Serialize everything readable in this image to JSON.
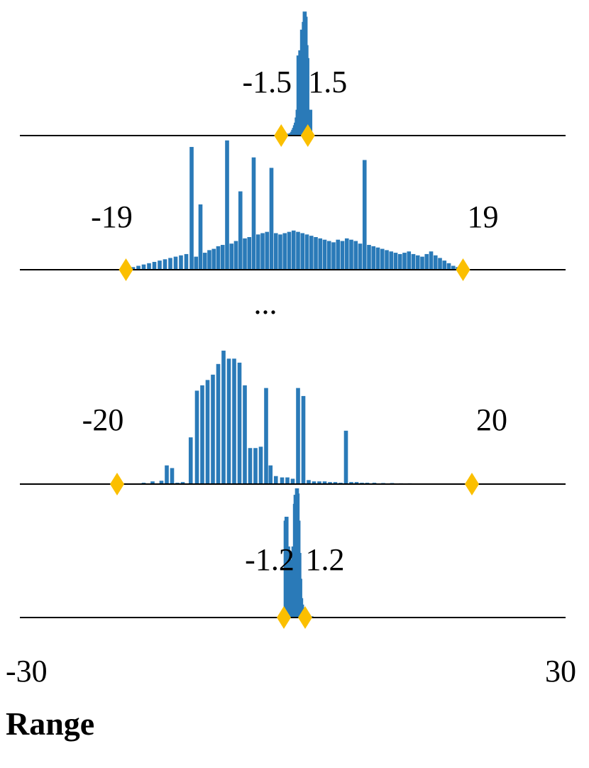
{
  "chart_data": {
    "type": "bar",
    "xlim": [
      -30,
      30
    ],
    "xlabel": "Range",
    "x_tick_labels": [
      "-30",
      "30"
    ],
    "ellipsis": "...",
    "colors": {
      "bars": "#2a7ab8",
      "markers": "#fbbf00",
      "baseline": "#000000"
    },
    "bin_width": 0.45,
    "panels": [
      {
        "range_labels": [
          "-1.5",
          "1.5"
        ],
        "range": [
          -1.5,
          1.5
        ],
        "bins": [
          [
            -1.3,
            0.005
          ],
          [
            -0.9,
            0.01
          ],
          [
            -0.6,
            0.015
          ],
          [
            -0.4,
            0.02
          ],
          [
            -0.25,
            0.03
          ],
          [
            -0.15,
            0.045
          ],
          [
            -0.05,
            0.06
          ],
          [
            0.05,
            0.08
          ],
          [
            0.15,
            0.1
          ],
          [
            0.25,
            0.14
          ],
          [
            0.35,
            0.2
          ],
          [
            0.45,
            0.62
          ],
          [
            0.55,
            0.3
          ],
          [
            0.65,
            0.66
          ],
          [
            0.75,
            0.46
          ],
          [
            0.85,
            0.82
          ],
          [
            0.95,
            0.8
          ],
          [
            1.05,
            0.88
          ],
          [
            1.15,
            0.96
          ],
          [
            1.25,
            0.92
          ],
          [
            1.35,
            0.7
          ],
          [
            1.45,
            0.6
          ],
          [
            1.55,
            0.2
          ],
          [
            1.65,
            0.05
          ],
          [
            1.78,
            0.2
          ],
          [
            1.9,
            0.02
          ]
        ]
      },
      {
        "range_labels": [
          "-19",
          "19"
        ],
        "range": [
          -19,
          19
        ],
        "bins": [
          [
            -18.2,
            0.02
          ],
          [
            -17.6,
            0.03
          ],
          [
            -17.0,
            0.04
          ],
          [
            -16.4,
            0.05
          ],
          [
            -15.8,
            0.06
          ],
          [
            -15.2,
            0.07
          ],
          [
            -14.6,
            0.08
          ],
          [
            -14.0,
            0.09
          ],
          [
            -13.4,
            0.1
          ],
          [
            -12.8,
            0.11
          ],
          [
            -12.2,
            0.12
          ],
          [
            -11.6,
            0.94
          ],
          [
            -11.1,
            0.1
          ],
          [
            -10.6,
            0.5
          ],
          [
            -10.1,
            0.13
          ],
          [
            -9.6,
            0.15
          ],
          [
            -9.1,
            0.16
          ],
          [
            -8.6,
            0.18
          ],
          [
            -8.1,
            0.19
          ],
          [
            -7.6,
            0.99
          ],
          [
            -7.1,
            0.2
          ],
          [
            -6.6,
            0.22
          ],
          [
            -6.1,
            0.6
          ],
          [
            -5.6,
            0.24
          ],
          [
            -5.1,
            0.25
          ],
          [
            -4.6,
            0.86
          ],
          [
            -4.1,
            0.27
          ],
          [
            -3.6,
            0.28
          ],
          [
            -3.1,
            0.29
          ],
          [
            -2.6,
            0.78
          ],
          [
            -2.1,
            0.28
          ],
          [
            -1.6,
            0.27
          ],
          [
            -1.1,
            0.28
          ],
          [
            -0.6,
            0.29
          ],
          [
            -0.1,
            0.3
          ],
          [
            0.4,
            0.29
          ],
          [
            0.9,
            0.28
          ],
          [
            1.4,
            0.27
          ],
          [
            1.9,
            0.26
          ],
          [
            2.4,
            0.25
          ],
          [
            2.9,
            0.24
          ],
          [
            3.4,
            0.23
          ],
          [
            3.9,
            0.22
          ],
          [
            4.4,
            0.21
          ],
          [
            4.9,
            0.23
          ],
          [
            5.4,
            0.22
          ],
          [
            5.9,
            0.24
          ],
          [
            6.4,
            0.23
          ],
          [
            6.9,
            0.22
          ],
          [
            7.4,
            0.2
          ],
          [
            7.9,
            0.84
          ],
          [
            8.4,
            0.19
          ],
          [
            8.9,
            0.18
          ],
          [
            9.4,
            0.17
          ],
          [
            9.9,
            0.16
          ],
          [
            10.4,
            0.15
          ],
          [
            10.9,
            0.14
          ],
          [
            11.4,
            0.13
          ],
          [
            11.9,
            0.12
          ],
          [
            12.4,
            0.13
          ],
          [
            12.9,
            0.14
          ],
          [
            13.4,
            0.12
          ],
          [
            13.9,
            0.11
          ],
          [
            14.4,
            0.1
          ],
          [
            14.9,
            0.12
          ],
          [
            15.4,
            0.14
          ],
          [
            15.9,
            0.11
          ],
          [
            16.4,
            0.09
          ],
          [
            16.9,
            0.07
          ],
          [
            17.4,
            0.05
          ],
          [
            17.9,
            0.03
          ],
          [
            18.4,
            0.02
          ],
          [
            18.9,
            0.01
          ]
        ]
      },
      {
        "range_labels": [
          "-20",
          "20"
        ],
        "range": [
          -20,
          20
        ],
        "bins": [
          [
            -17.0,
            0.01
          ],
          [
            -16.0,
            0.02
          ],
          [
            -15.0,
            0.025
          ],
          [
            -14.4,
            0.14
          ],
          [
            -13.8,
            0.12
          ],
          [
            -13.2,
            0.01
          ],
          [
            -12.6,
            0.015
          ],
          [
            -11.7,
            0.35
          ],
          [
            -11.0,
            0.7
          ],
          [
            -10.4,
            0.74
          ],
          [
            -9.8,
            0.78
          ],
          [
            -9.2,
            0.82
          ],
          [
            -8.6,
            0.9
          ],
          [
            -8.0,
            1.0
          ],
          [
            -7.4,
            0.94
          ],
          [
            -6.8,
            0.94
          ],
          [
            -6.2,
            0.91
          ],
          [
            -5.6,
            0.74
          ],
          [
            -5.0,
            0.27
          ],
          [
            -4.4,
            0.27
          ],
          [
            -3.8,
            0.28
          ],
          [
            -3.2,
            0.72
          ],
          [
            -2.7,
            0.14
          ],
          [
            -2.1,
            0.06
          ],
          [
            -1.4,
            0.05
          ],
          [
            -0.8,
            0.05
          ],
          [
            -0.2,
            0.04
          ],
          [
            0.4,
            0.72
          ],
          [
            1.0,
            0.66
          ],
          [
            1.6,
            0.03
          ],
          [
            2.2,
            0.02
          ],
          [
            2.8,
            0.02
          ],
          [
            3.4,
            0.02
          ],
          [
            4.0,
            0.015
          ],
          [
            4.6,
            0.015
          ],
          [
            5.2,
            0.01
          ],
          [
            5.8,
            0.4
          ],
          [
            6.4,
            0.015
          ],
          [
            7.0,
            0.015
          ],
          [
            7.6,
            0.01
          ],
          [
            8.2,
            0.01
          ],
          [
            9.0,
            0.01
          ],
          [
            10.0,
            0.008
          ],
          [
            11.0,
            0.008
          ],
          [
            12.0,
            0.006
          ],
          [
            13.0,
            0.006
          ],
          [
            14.0,
            0.005
          ],
          [
            15.0,
            0.005
          ],
          [
            16.0,
            0.004
          ],
          [
            17.0,
            0.004
          ],
          [
            18.0,
            0.003
          ],
          [
            19.0,
            0.003
          ]
        ]
      },
      {
        "range_labels": [
          "-1.2",
          "1.2"
        ],
        "range": [
          -1.2,
          1.2
        ],
        "bins": [
          [
            -1.0,
            0.75
          ],
          [
            -0.9,
            0.78
          ],
          [
            -0.8,
            0.03
          ],
          [
            -0.72,
            0.55
          ],
          [
            -0.62,
            0.04
          ],
          [
            -0.52,
            0.3
          ],
          [
            -0.42,
            0.45
          ],
          [
            -0.32,
            0.06
          ],
          [
            -0.22,
            0.4
          ],
          [
            -0.12,
            0.55
          ],
          [
            -0.05,
            0.3
          ],
          [
            0.05,
            0.88
          ],
          [
            0.12,
            0.95
          ],
          [
            0.2,
            0.92
          ],
          [
            0.28,
            1.0
          ],
          [
            0.35,
            0.96
          ],
          [
            0.45,
            0.75
          ],
          [
            0.55,
            0.5
          ],
          [
            0.65,
            0.3
          ],
          [
            0.75,
            0.15
          ],
          [
            0.85,
            0.1
          ],
          [
            0.95,
            0.07
          ],
          [
            1.05,
            0.05
          ],
          [
            1.15,
            0.04
          ],
          [
            1.25,
            0.03
          ],
          [
            1.35,
            0.02
          ],
          [
            1.5,
            0.015
          ],
          [
            1.7,
            0.01
          ],
          [
            1.9,
            0.01
          ]
        ]
      }
    ]
  }
}
